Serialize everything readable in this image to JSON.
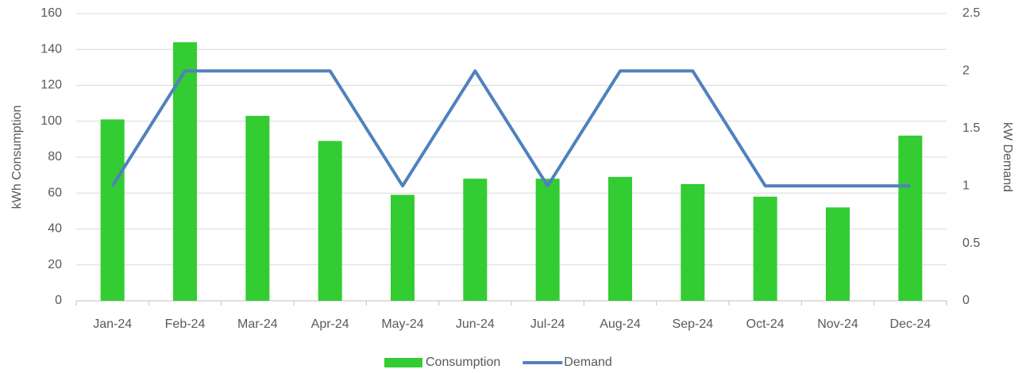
{
  "chart_data": {
    "type": "combo",
    "categories": [
      "Jan-24",
      "Feb-24",
      "Mar-24",
      "Apr-24",
      "May-24",
      "Jun-24",
      "Jul-24",
      "Aug-24",
      "Sep-24",
      "Oct-24",
      "Nov-24",
      "Dec-24"
    ],
    "series": [
      {
        "name": "Consumption",
        "type": "bar",
        "color": "#33cc33",
        "values": [
          101,
          144,
          103,
          89,
          59,
          68,
          68,
          69,
          65,
          58,
          52,
          92
        ]
      },
      {
        "name": "Demand",
        "type": "line",
        "axis": "y2",
        "color": "#4f81bd",
        "values": [
          1,
          2,
          2,
          2,
          1,
          2,
          1,
          2,
          2,
          1,
          1,
          1
        ]
      }
    ],
    "ylabel": "kWh Consumption",
    "y2label": "kW Demand",
    "ylim": [
      0,
      160
    ],
    "yticks": [
      0,
      20,
      40,
      60,
      80,
      100,
      120,
      140,
      160
    ],
    "y2lim": [
      0,
      2.5
    ],
    "y2ticks": [
      0,
      0.5,
      1,
      1.5,
      2,
      2.5
    ],
    "grid": true,
    "legend": "bottom"
  }
}
